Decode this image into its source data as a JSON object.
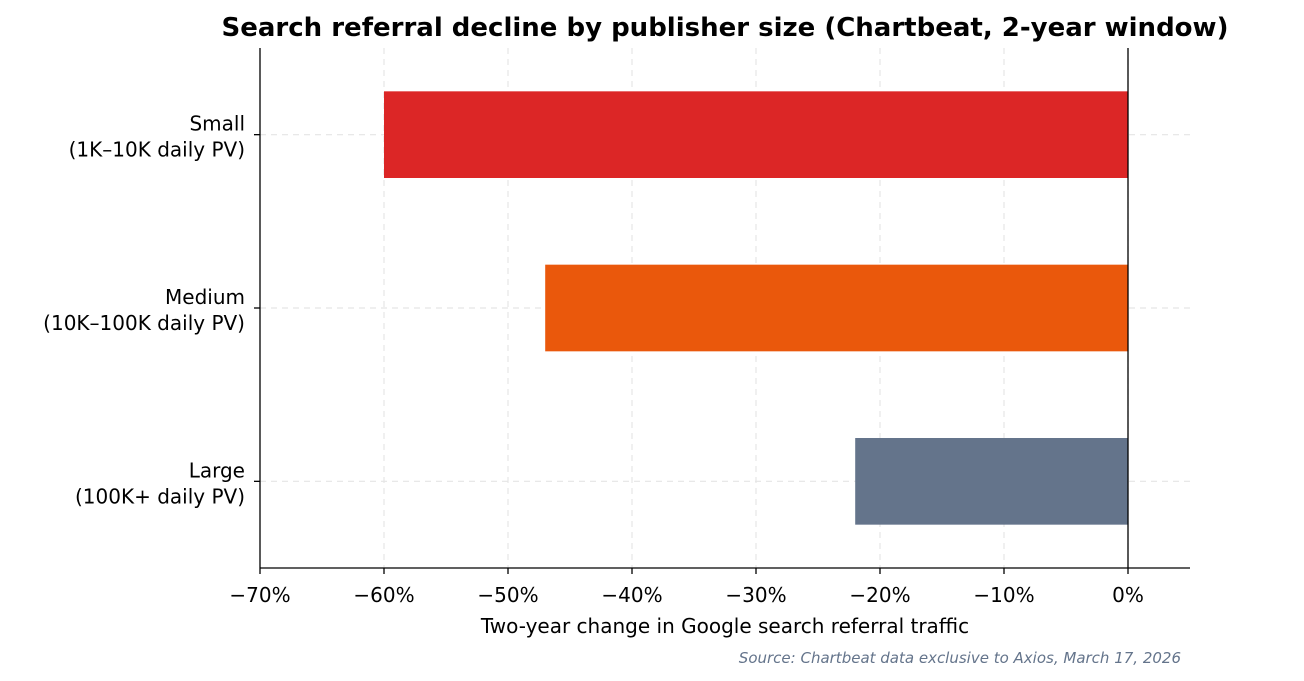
{
  "chart_data": {
    "type": "bar",
    "orientation": "horizontal",
    "title": "Search referral decline by publisher size (Chartbeat, 2-year window)",
    "xlabel": "Two-year change in Google search referral traffic",
    "ylabel": "",
    "categories": [
      [
        "Small",
        "(1K–10K daily PV)"
      ],
      [
        "Medium",
        "(10K–100K daily PV)"
      ],
      [
        "Large",
        "(100K+ daily PV)"
      ]
    ],
    "values": [
      -60,
      -47,
      -22
    ],
    "colors": [
      "#dc2626",
      "#ea580c",
      "#64748b"
    ],
    "xlim": [
      -70,
      5
    ],
    "xticks": [
      -70,
      -60,
      -50,
      -40,
      -30,
      -20,
      -10,
      0
    ],
    "xtick_labels": [
      "−70%",
      "−60%",
      "−50%",
      "−40%",
      "−30%",
      "−20%",
      "−10%",
      "0%"
    ],
    "grid": true,
    "zero_line": true
  },
  "source": "Source: Chartbeat data exclusive to Axios, March 17, 2026"
}
